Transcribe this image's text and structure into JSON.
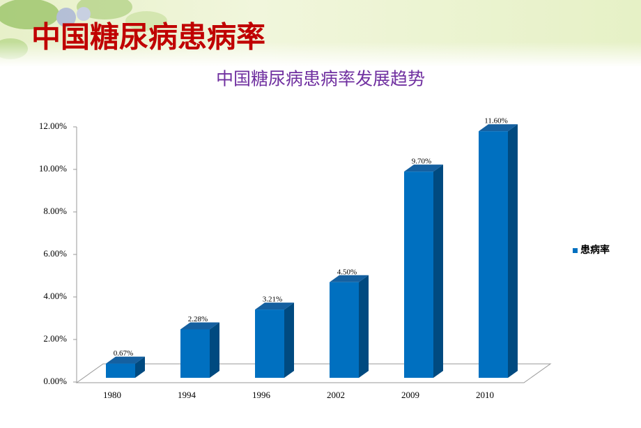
{
  "slide_title": "中国糖尿病患病率",
  "chart_data": {
    "type": "bar3d",
    "title": "中国糖尿病患病率发展趋势",
    "categories": [
      "1980",
      "1994",
      "1996",
      "2002",
      "2009",
      "2010"
    ],
    "series": [
      {
        "name": "患病率",
        "color": "#0070c0",
        "values": [
          0.67,
          2.28,
          3.21,
          4.5,
          9.7,
          11.6
        ],
        "value_labels": [
          "0.67%",
          "2.28%",
          "3.21%",
          "4.50%",
          "9.70%",
          "11.60%"
        ]
      }
    ],
    "ylim": [
      0,
      12
    ],
    "yticks": [
      {
        "value": 0,
        "label": "0.00%"
      },
      {
        "value": 2,
        "label": "2.00%"
      },
      {
        "value": 4,
        "label": "4.00%"
      },
      {
        "value": 6,
        "label": "6.00%"
      },
      {
        "value": 8,
        "label": "8.00%"
      },
      {
        "value": 10,
        "label": "10.00%"
      },
      {
        "value": 12,
        "label": "12.00%"
      }
    ],
    "legend": "right"
  }
}
